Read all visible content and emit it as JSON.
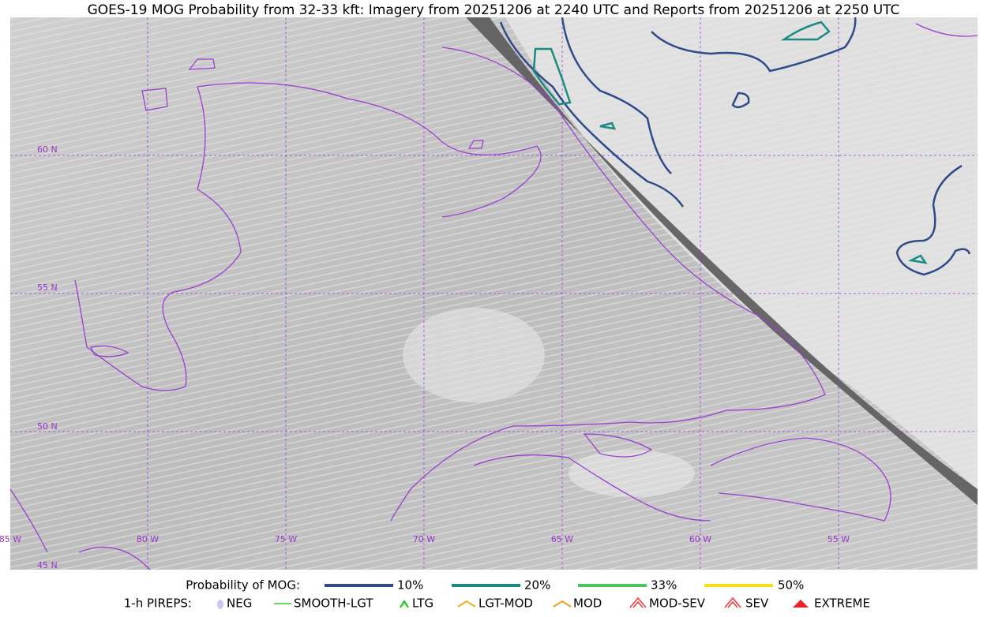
{
  "header": {
    "title": "GOES-19 MOG Probability from 32-33 kft: Imagery from 20251206 at 2240 UTC and Reports from 20251206 at 2250 UTC"
  },
  "map": {
    "lat_labels": [
      "60 N",
      "55 N",
      "50 N",
      "45 N"
    ],
    "lon_labels": [
      "85 W",
      "80 W",
      "75 W",
      "70 W",
      "65 W",
      "60 W",
      "55 W"
    ]
  },
  "legend": {
    "probability_title": "Probability of MOG:",
    "probability_levels": [
      "10%",
      "20%",
      "33%",
      "50%"
    ],
    "pirep_title": "1-h PIREPS:",
    "pirep_types": [
      "NEG",
      "SMOOTH-LGT",
      "LTG",
      "LGT-MOD",
      "MOD",
      "MOD-SEV",
      "SEV",
      "EXTREME"
    ]
  }
}
